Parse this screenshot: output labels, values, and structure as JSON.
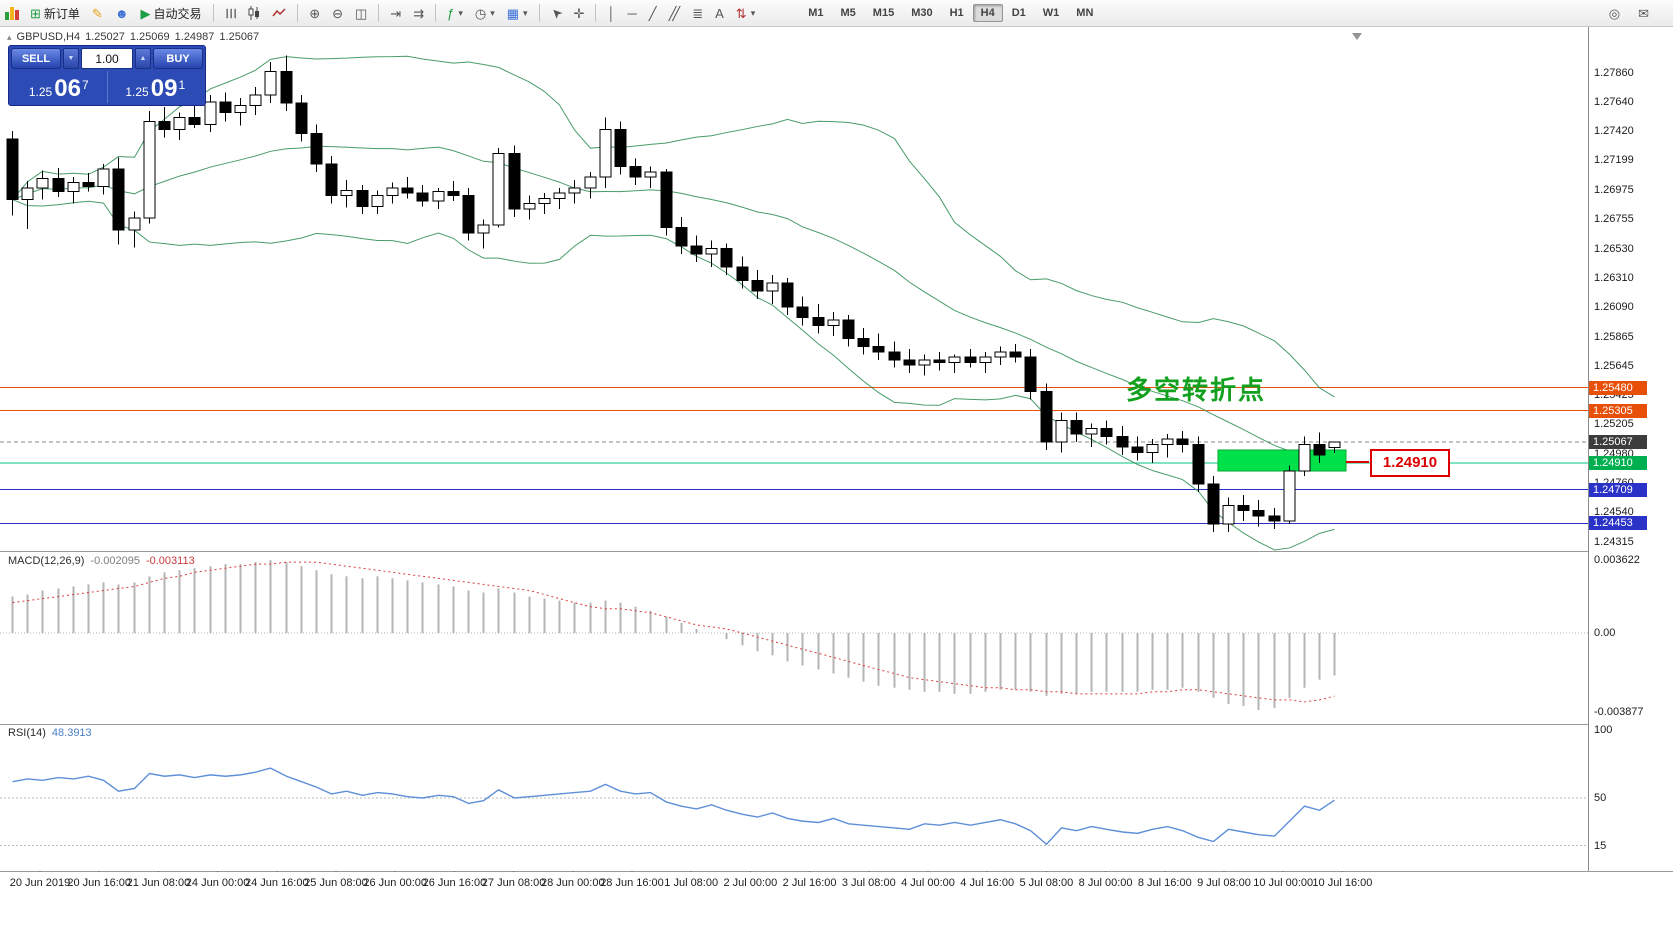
{
  "toolbar": {
    "new_order_label": "新订单",
    "autotrade_label": "自动交易",
    "timeframes": [
      "M1",
      "M5",
      "M15",
      "M30",
      "H1",
      "H4",
      "D1",
      "W1",
      "MN"
    ],
    "active_timeframe": "H4",
    "icons": {
      "new_order": "⊞",
      "metaeditor": "✎",
      "community": "☻",
      "autotrade": "▶",
      "bars": "☰",
      "zoom_in": "⊕",
      "zoom_out": "⊖",
      "tile": "◫",
      "autoscroll": "⇥",
      "chart_shift": "⇉",
      "indicators": "ƒ",
      "periods": "◷",
      "templates": "▦",
      "cursor": "➤",
      "crosshair": "✛",
      "vline": "│",
      "hline": "─",
      "trendline": "╱",
      "channel": "╱╱",
      "fibonacci": "≣",
      "text": "A",
      "arrows": "⇅",
      "dropdown": "▾",
      "search": "◎",
      "mail": "✉"
    }
  },
  "quote": {
    "symbol": "GBPUSD,H4",
    "open": "1.25027",
    "high": "1.25069",
    "low": "1.24987",
    "close": "1.25067"
  },
  "one_click": {
    "sell_label": "SELL",
    "buy_label": "BUY",
    "volume": "1.00",
    "spin_up": "▲",
    "spin_down": "▼",
    "sell_price": {
      "small": "1.25",
      "big": "06",
      "sup": "7"
    },
    "buy_price": {
      "small": "1.25",
      "big": "09",
      "sup": "1"
    }
  },
  "annotations": {
    "turning_point_text": "多空转折点",
    "turning_point_color": "#12A01E",
    "highlight_label": "1.24910",
    "highlight_rect_color": "#00E14A",
    "highlight_rect_border": "#00A82D"
  },
  "levels": {
    "lines": [
      {
        "price": 1.2548,
        "color": "#E8500A",
        "dash": ""
      },
      {
        "price": 1.25305,
        "color": "#E8500A",
        "dash": ""
      },
      {
        "price": 1.25067,
        "color": "#8a8a8a",
        "dash": "4 3"
      },
      {
        "price": 1.2491,
        "color": "#00C77E",
        "dash": ""
      },
      {
        "price": 1.24709,
        "color": "#2B32C8",
        "dash": ""
      },
      {
        "price": 1.24453,
        "color": "#2B32C8",
        "dash": ""
      }
    ],
    "badges": [
      {
        "text": "1.25480",
        "bg": "#E8500A"
      },
      {
        "text": "1.25305",
        "bg": "#E8500A"
      },
      {
        "text": "1.25067",
        "bg": "#3C3C3C"
      },
      {
        "text": "1.24910",
        "bg": "#00B050"
      },
      {
        "text": "1.24709",
        "bg": "#2B32C8"
      },
      {
        "text": "1.24453",
        "bg": "#2B32C8"
      }
    ]
  },
  "colors": {
    "bull": "#FFFFFF",
    "bear": "#000000",
    "wick": "#000000",
    "bollinger": "#35915A",
    "macd_hist": "#B4B4B4",
    "macd_signal": "#DD3A3A",
    "rsi_line": "#5E8FD8"
  },
  "indicators": {
    "macd": {
      "title": "MACD(12,26,9)",
      "value": "-0.002095",
      "signal_value": "-0.003113",
      "scale_labels": [
        "0.003622",
        "0.00",
        "-0.003877"
      ],
      "histogram": [
        0.0018,
        0.0019,
        0.0021,
        0.0022,
        0.0023,
        0.0024,
        0.0025,
        0.0024,
        0.0025,
        0.0028,
        0.003,
        0.0031,
        0.0032,
        0.0033,
        0.0034,
        0.0034,
        0.0035,
        0.0036,
        0.0035,
        0.0033,
        0.0031,
        0.0029,
        0.0028,
        0.0027,
        0.0028,
        0.0027,
        0.0026,
        0.0025,
        0.0024,
        0.0023,
        0.0021,
        0.002,
        0.0022,
        0.002,
        0.0018,
        0.0017,
        0.0016,
        0.0015,
        0.0015,
        0.0016,
        0.0015,
        0.0013,
        0.0011,
        0.0008,
        0.0005,
        0.0002,
        0,
        -0.0003,
        -0.0006,
        -0.0009,
        -0.0011,
        -0.0014,
        -0.0016,
        -0.0018,
        -0.002,
        -0.0022,
        -0.0024,
        -0.0026,
        -0.0027,
        -0.0028,
        -0.0029,
        -0.0029,
        -0.003,
        -0.003,
        -0.0029,
        -0.0028,
        -0.0028,
        -0.0029,
        -0.0031,
        -0.003,
        -0.003,
        -0.0029,
        -0.0029,
        -0.0029,
        -0.0029,
        -0.0028,
        -0.0028,
        -0.0027,
        -0.0029,
        -0.0032,
        -0.0035,
        -0.0036,
        -0.0038,
        -0.0037,
        -0.0032,
        -0.0027,
        -0.0023,
        -0.002095
      ],
      "signal": [
        0.0015,
        0.0016,
        0.0017,
        0.0018,
        0.0019,
        0.002,
        0.0021,
        0.0022,
        0.0023,
        0.0025,
        0.0027,
        0.0028,
        0.003,
        0.0031,
        0.0032,
        0.0033,
        0.0034,
        0.0034,
        0.0035,
        0.0035,
        0.0035,
        0.0034,
        0.0033,
        0.0032,
        0.0031,
        0.003,
        0.0029,
        0.0028,
        0.0027,
        0.0026,
        0.0025,
        0.0024,
        0.0023,
        0.0022,
        0.0021,
        0.0019,
        0.0017,
        0.0015,
        0.0013,
        0.0012,
        0.0012,
        0.0011,
        0.001,
        0.0008,
        0.0006,
        0.0004,
        0.0003,
        0.0002,
        0,
        -0.0002,
        -0.0004,
        -0.0006,
        -0.0008,
        -0.001,
        -0.0012,
        -0.0014,
        -0.0016,
        -0.0018,
        -0.002,
        -0.0022,
        -0.0023,
        -0.0024,
        -0.0025,
        -0.0026,
        -0.0027,
        -0.0027,
        -0.0028,
        -0.0028,
        -0.0029,
        -0.0029,
        -0.003,
        -0.003,
        -0.003,
        -0.003,
        -0.003,
        -0.0029,
        -0.0029,
        -0.0028,
        -0.0028,
        -0.0029,
        -0.003,
        -0.0031,
        -0.0032,
        -0.0033,
        -0.0033,
        -0.0034,
        -0.0033,
        -0.003113
      ]
    },
    "rsi": {
      "title": "RSI(14)",
      "value": "48.3913",
      "scale_labels": [
        "100",
        "50",
        "15"
      ],
      "level_lines": [
        50,
        15
      ],
      "series": [
        62,
        64,
        63,
        65,
        64,
        66,
        63,
        55,
        57,
        68,
        66,
        67,
        65,
        67,
        66,
        67,
        69,
        72,
        66,
        62,
        58,
        53,
        55,
        52,
        54,
        53,
        51,
        50,
        52,
        51,
        46,
        48,
        56,
        50,
        51,
        52,
        53,
        54,
        55,
        60,
        55,
        53,
        54,
        47,
        44,
        42,
        45,
        41,
        38,
        36,
        39,
        35,
        33,
        32,
        35,
        31,
        30,
        29,
        28,
        27,
        31,
        30,
        32,
        30,
        32,
        34,
        31,
        26,
        16,
        28,
        26,
        29,
        27,
        25,
        24,
        27,
        29,
        26,
        21,
        18,
        27,
        25,
        23,
        22,
        33,
        44,
        41,
        48.39
      ]
    }
  },
  "chart_data": {
    "type": "candlestick",
    "symbol": "GBPUSD",
    "timeframe": "H4",
    "ohlc_display": {
      "open": "1.25027",
      "high": "1.25069",
      "low": "1.24987",
      "close": "1.25067"
    },
    "price_axis_ticks": [
      "1.27860",
      "1.27640",
      "1.27420",
      "1.27199",
      "1.26975",
      "1.26755",
      "1.26530",
      "1.26310",
      "1.26090",
      "1.25865",
      "1.25645",
      "1.25425",
      "1.25205",
      "1.24980",
      "1.24760",
      "1.24540",
      "1.24315"
    ],
    "time_axis_labels": [
      "20 Jun 2019",
      "20 Jun 16:00",
      "21 Jun 08:00",
      "24 Jun 00:00",
      "24 Jun 16:00",
      "25 Jun 08:00",
      "26 Jun 00:00",
      "26 Jun 16:00",
      "27 Jun 08:00",
      "28 Jun 00:00",
      "28 Jun 16:00",
      "1 Jul 08:00",
      "2 Jul 00:00",
      "2 Jul 16:00",
      "3 Jul 08:00",
      "4 Jul 00:00",
      "4 Jul 16:00",
      "5 Jul 08:00",
      "8 Jul 00:00",
      "8 Jul 16:00",
      "9 Jul 08:00",
      "10 Jul 00:00",
      "10 Jul 16:00"
    ],
    "overlays": {
      "bollinger_bands": {
        "period": 20,
        "deviation": 2
      }
    },
    "price_range": {
      "top": 1.28205,
      "bottom": 1.24245
    },
    "candles": [
      [
        1.2736,
        1.2742,
        1.2678,
        1.269
      ],
      [
        1.269,
        1.2704,
        1.2668,
        1.2699
      ],
      [
        1.2699,
        1.2712,
        1.269,
        1.2706
      ],
      [
        1.2706,
        1.2714,
        1.2692,
        1.2696
      ],
      [
        1.2696,
        1.2707,
        1.2687,
        1.2703
      ],
      [
        1.2703,
        1.271,
        1.2696,
        1.27
      ],
      [
        1.27,
        1.2717,
        1.2694,
        1.2713
      ],
      [
        1.2713,
        1.2722,
        1.2656,
        1.2667
      ],
      [
        1.2667,
        1.2681,
        1.2654,
        1.2676
      ],
      [
        1.2676,
        1.2757,
        1.2672,
        1.2749
      ],
      [
        1.2749,
        1.276,
        1.2737,
        1.2743
      ],
      [
        1.2743,
        1.2756,
        1.2735,
        1.2752
      ],
      [
        1.2752,
        1.2761,
        1.2744,
        1.2747
      ],
      [
        1.2747,
        1.2769,
        1.2741,
        1.2764
      ],
      [
        1.2764,
        1.2771,
        1.2749,
        1.2756
      ],
      [
        1.2756,
        1.2767,
        1.2746,
        1.2761
      ],
      [
        1.2761,
        1.2775,
        1.2754,
        1.2769
      ],
      [
        1.2769,
        1.2794,
        1.2763,
        1.2787
      ],
      [
        1.2787,
        1.2799,
        1.2757,
        1.2763
      ],
      [
        1.2763,
        1.2769,
        1.2734,
        1.274
      ],
      [
        1.274,
        1.2747,
        1.2711,
        1.2717
      ],
      [
        1.2717,
        1.2723,
        1.2687,
        1.2693
      ],
      [
        1.2693,
        1.2705,
        1.2684,
        1.2697
      ],
      [
        1.2697,
        1.2701,
        1.2679,
        1.2685
      ],
      [
        1.2685,
        1.2697,
        1.2679,
        1.2693
      ],
      [
        1.2693,
        1.2703,
        1.2687,
        1.2699
      ],
      [
        1.2699,
        1.2707,
        1.2691,
        1.2695
      ],
      [
        1.2695,
        1.2701,
        1.2685,
        1.2689
      ],
      [
        1.2689,
        1.2699,
        1.2683,
        1.2696
      ],
      [
        1.2696,
        1.2704,
        1.2689,
        1.2693
      ],
      [
        1.2693,
        1.2699,
        1.2659,
        1.2665
      ],
      [
        1.2665,
        1.2675,
        1.2653,
        1.2671
      ],
      [
        1.2671,
        1.2729,
        1.2669,
        1.2725
      ],
      [
        1.2725,
        1.2731,
        1.2677,
        1.2683
      ],
      [
        1.2683,
        1.2693,
        1.2675,
        1.2687
      ],
      [
        1.2687,
        1.2695,
        1.2679,
        1.2691
      ],
      [
        1.2691,
        1.2699,
        1.2683,
        1.2695
      ],
      [
        1.2695,
        1.2705,
        1.2687,
        1.2699
      ],
      [
        1.2699,
        1.2711,
        1.2691,
        1.2707
      ],
      [
        1.2707,
        1.2752,
        1.2699,
        1.2743
      ],
      [
        1.2743,
        1.2749,
        1.2709,
        1.2715
      ],
      [
        1.2715,
        1.2721,
        1.2701,
        1.2707
      ],
      [
        1.2707,
        1.2715,
        1.2699,
        1.2711
      ],
      [
        1.2711,
        1.2713,
        1.2663,
        1.2669
      ],
      [
        1.2669,
        1.2677,
        1.2649,
        1.2655
      ],
      [
        1.2655,
        1.2663,
        1.2643,
        1.2649
      ],
      [
        1.2649,
        1.2659,
        1.2639,
        1.2653
      ],
      [
        1.2653,
        1.2657,
        1.2633,
        1.2639
      ],
      [
        1.2639,
        1.2647,
        1.2623,
        1.2629
      ],
      [
        1.2629,
        1.2637,
        1.2615,
        1.2621
      ],
      [
        1.2621,
        1.2633,
        1.2611,
        1.2627
      ],
      [
        1.2627,
        1.2631,
        1.2603,
        1.2609
      ],
      [
        1.2609,
        1.2617,
        1.2595,
        1.2601
      ],
      [
        1.2601,
        1.2611,
        1.2589,
        1.2595
      ],
      [
        1.2595,
        1.2605,
        1.2587,
        1.2599
      ],
      [
        1.2599,
        1.2603,
        1.2579,
        1.2585
      ],
      [
        1.2585,
        1.2593,
        1.2573,
        1.2579
      ],
      [
        1.2579,
        1.2589,
        1.2569,
        1.2575
      ],
      [
        1.2575,
        1.2583,
        1.2563,
        1.2569
      ],
      [
        1.2569,
        1.2577,
        1.2559,
        1.2565
      ],
      [
        1.2565,
        1.2573,
        1.2557,
        1.2569
      ],
      [
        1.2569,
        1.2575,
        1.2561,
        1.2567
      ],
      [
        1.2567,
        1.2573,
        1.2559,
        1.2571
      ],
      [
        1.2571,
        1.2577,
        1.2563,
        1.2567
      ],
      [
        1.2567,
        1.2575,
        1.2559,
        1.2571
      ],
      [
        1.2571,
        1.2579,
        1.2565,
        1.2575
      ],
      [
        1.2575,
        1.2581,
        1.2567,
        1.2571
      ],
      [
        1.2571,
        1.2577,
        1.2539,
        1.2545
      ],
      [
        1.2545,
        1.2551,
        1.2501,
        1.2507
      ],
      [
        1.2507,
        1.2529,
        1.2499,
        1.2523
      ],
      [
        1.2523,
        1.2529,
        1.2507,
        1.2513
      ],
      [
        1.2513,
        1.2521,
        1.2503,
        1.2517
      ],
      [
        1.2517,
        1.2523,
        1.2505,
        1.2511
      ],
      [
        1.2511,
        1.2519,
        1.2497,
        1.2503
      ],
      [
        1.2503,
        1.2511,
        1.2493,
        1.2499
      ],
      [
        1.2499,
        1.2509,
        1.2491,
        1.2505
      ],
      [
        1.2505,
        1.2513,
        1.2495,
        1.2509
      ],
      [
        1.2509,
        1.2515,
        1.2499,
        1.2505
      ],
      [
        1.2505,
        1.2511,
        1.2469,
        1.2475
      ],
      [
        1.2475,
        1.2481,
        1.2439,
        1.2445
      ],
      [
        1.2445,
        1.2465,
        1.2439,
        1.2459
      ],
      [
        1.2459,
        1.2467,
        1.2447,
        1.2455
      ],
      [
        1.2455,
        1.2463,
        1.2443,
        1.2451
      ],
      [
        1.2451,
        1.2457,
        1.2441,
        1.2447
      ],
      [
        1.2447,
        1.2489,
        1.2445,
        1.2485
      ],
      [
        1.2485,
        1.2511,
        1.2481,
        1.2505
      ],
      [
        1.2505,
        1.2514,
        1.2491,
        1.2497
      ],
      [
        1.25027,
        1.25069,
        1.24987,
        1.25067
      ]
    ]
  }
}
